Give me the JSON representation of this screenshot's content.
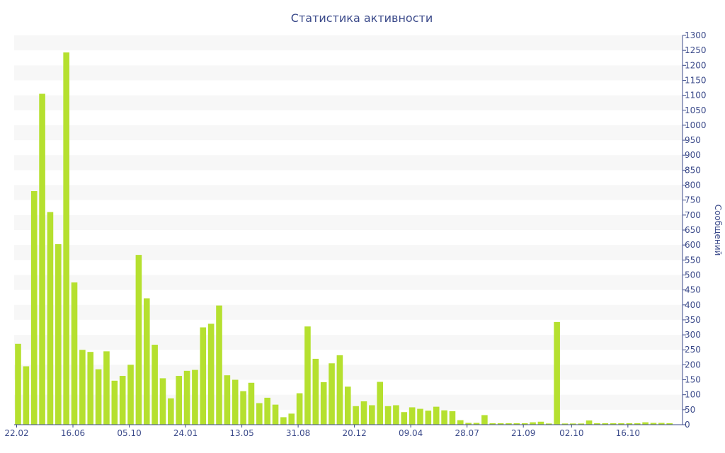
{
  "chart_data": {
    "type": "bar",
    "title": "Статистика активности",
    "ylabel": "Сообщений",
    "xlabel": "",
    "ylim": [
      0,
      1300
    ],
    "y_ticks": [
      0,
      50,
      100,
      150,
      200,
      250,
      300,
      350,
      400,
      450,
      500,
      550,
      600,
      650,
      700,
      750,
      800,
      850,
      900,
      950,
      1000,
      1050,
      1100,
      1150,
      1200,
      1250,
      1300
    ],
    "y_axis_position": "right",
    "grid": "horizontal alternating bands",
    "x_tick_labels": [
      "22.02",
      "16.06",
      "05.10",
      "24.01",
      "13.05",
      "31.08",
      "20.12",
      "09.04",
      "28.07",
      "21.09",
      "02.10",
      "16.10"
    ],
    "x_tick_label_bar_index": [
      0,
      7,
      14,
      21,
      28,
      35,
      42,
      49,
      56,
      63,
      69,
      76
    ],
    "bar_color": "#b5e02f",
    "values": [
      270,
      195,
      780,
      1105,
      710,
      603,
      1243,
      475,
      250,
      243,
      185,
      245,
      147,
      163,
      200,
      567,
      422,
      267,
      155,
      88,
      163,
      180,
      183,
      325,
      337,
      398,
      165,
      150,
      112,
      140,
      72,
      90,
      67,
      25,
      37,
      105,
      328,
      220,
      142,
      205,
      232,
      127,
      62,
      78,
      65,
      143,
      62,
      65,
      42,
      58,
      53,
      47,
      60,
      48,
      45,
      15,
      6,
      6,
      32,
      5,
      5,
      5,
      5,
      5,
      8,
      10,
      4,
      343,
      4,
      4,
      4,
      14,
      5,
      5,
      5,
      5,
      5,
      5,
      8,
      6,
      6,
      5
    ]
  }
}
